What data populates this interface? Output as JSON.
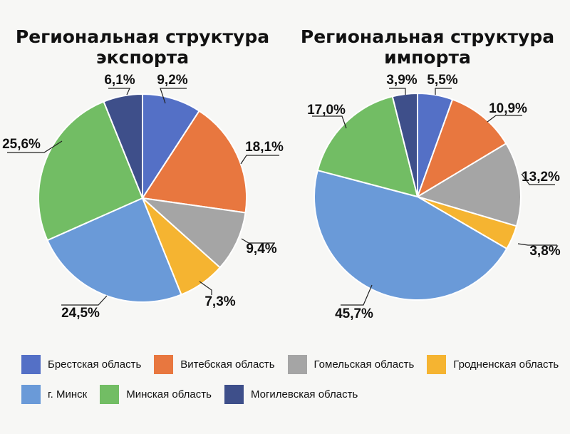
{
  "colors": {
    "brest": "#5470c6",
    "vitebsk": "#e8773f",
    "gomel": "#a5a5a5",
    "grodno": "#f5b431",
    "minsk_city": "#6a9ad8",
    "minsk_region": "#72bd64",
    "mogilev": "#3e4f8a"
  },
  "legend": [
    {
      "key": "brest",
      "label": "Брестская область"
    },
    {
      "key": "vitebsk",
      "label": "Витебская область"
    },
    {
      "key": "gomel",
      "label": "Гомельская область"
    },
    {
      "key": "grodno",
      "label": "Гродненская область"
    },
    {
      "key": "minsk_city",
      "label": "г. Минск"
    },
    {
      "key": "minsk_region",
      "label": "Минская область"
    },
    {
      "key": "mogilev",
      "label": "Могилевская область"
    }
  ],
  "chart_data": [
    {
      "type": "pie",
      "title": "Региональная структура экспорта",
      "title_lines": [
        "Региональная структура",
        "экспорта"
      ],
      "start": "12 o'clock",
      "direction": "clockwise",
      "slices": [
        {
          "key": "brest",
          "value": 9.2,
          "label": "9,2%"
        },
        {
          "key": "vitebsk",
          "value": 18.1,
          "label": "18,1%"
        },
        {
          "key": "gomel",
          "value": 9.4,
          "label": "9,4%"
        },
        {
          "key": "grodno",
          "value": 7.3,
          "label": "7,3%"
        },
        {
          "key": "minsk_city",
          "value": 24.5,
          "label": "24,5%"
        },
        {
          "key": "minsk_region",
          "value": 25.6,
          "label": "25,6%"
        },
        {
          "key": "mogilev",
          "value": 6.1,
          "label": "6,1%"
        }
      ]
    },
    {
      "type": "pie",
      "title": "Региональная структура импорта",
      "title_lines": [
        "Региональная структура",
        "импорта"
      ],
      "start": "12 o'clock",
      "direction": "clockwise",
      "slices": [
        {
          "key": "brest",
          "value": 5.5,
          "label": "5,5%"
        },
        {
          "key": "vitebsk",
          "value": 10.9,
          "label": "10,9%"
        },
        {
          "key": "gomel",
          "value": 13.2,
          "label": "13,2%"
        },
        {
          "key": "grodno",
          "value": 3.8,
          "label": "3,8%"
        },
        {
          "key": "minsk_city",
          "value": 45.7,
          "label": "45,7%"
        },
        {
          "key": "minsk_region",
          "value": 17.0,
          "label": "17,0%"
        },
        {
          "key": "mogilev",
          "value": 3.9,
          "label": "3,9%"
        }
      ]
    }
  ]
}
